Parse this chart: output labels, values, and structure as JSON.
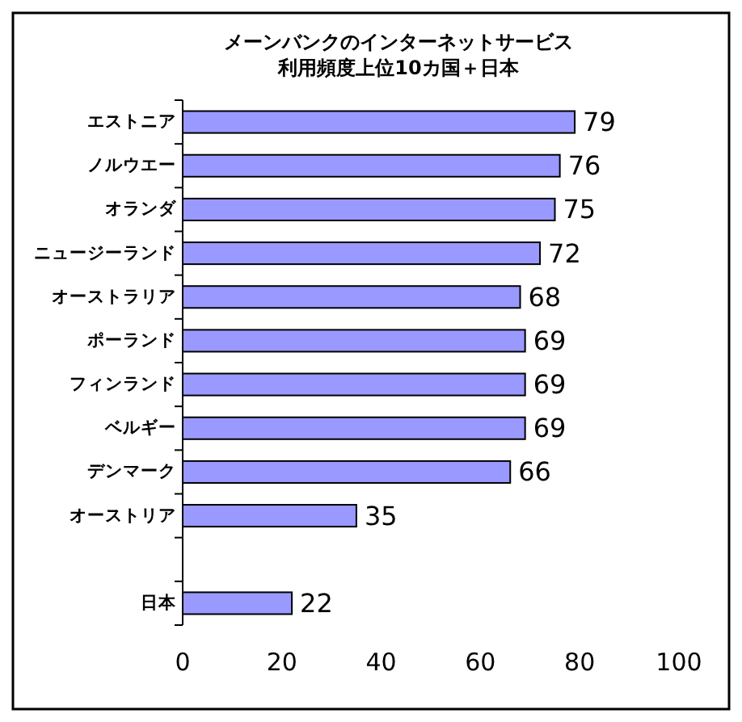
{
  "chart_data": {
    "type": "bar",
    "orientation": "horizontal",
    "title": "メーンバンクのインターネットサービス",
    "subtitle": "利用頻度上位10カ国＋日本",
    "categories": [
      "エストニア",
      "ノルウエー",
      "オランダ",
      "ニュージーランド",
      "オーストラリア",
      "ポーランド",
      "フィンランド",
      "ベルギー",
      "デンマーク",
      "オーストリア",
      null,
      "日本"
    ],
    "values": [
      79,
      76,
      75,
      72,
      68,
      69,
      69,
      69,
      66,
      35,
      null,
      22
    ],
    "color": "#9999ff",
    "xlim": [
      0,
      100
    ],
    "xticks": [
      0,
      20,
      40,
      60,
      80,
      100
    ],
    "data_labels": true,
    "grid": false
  }
}
